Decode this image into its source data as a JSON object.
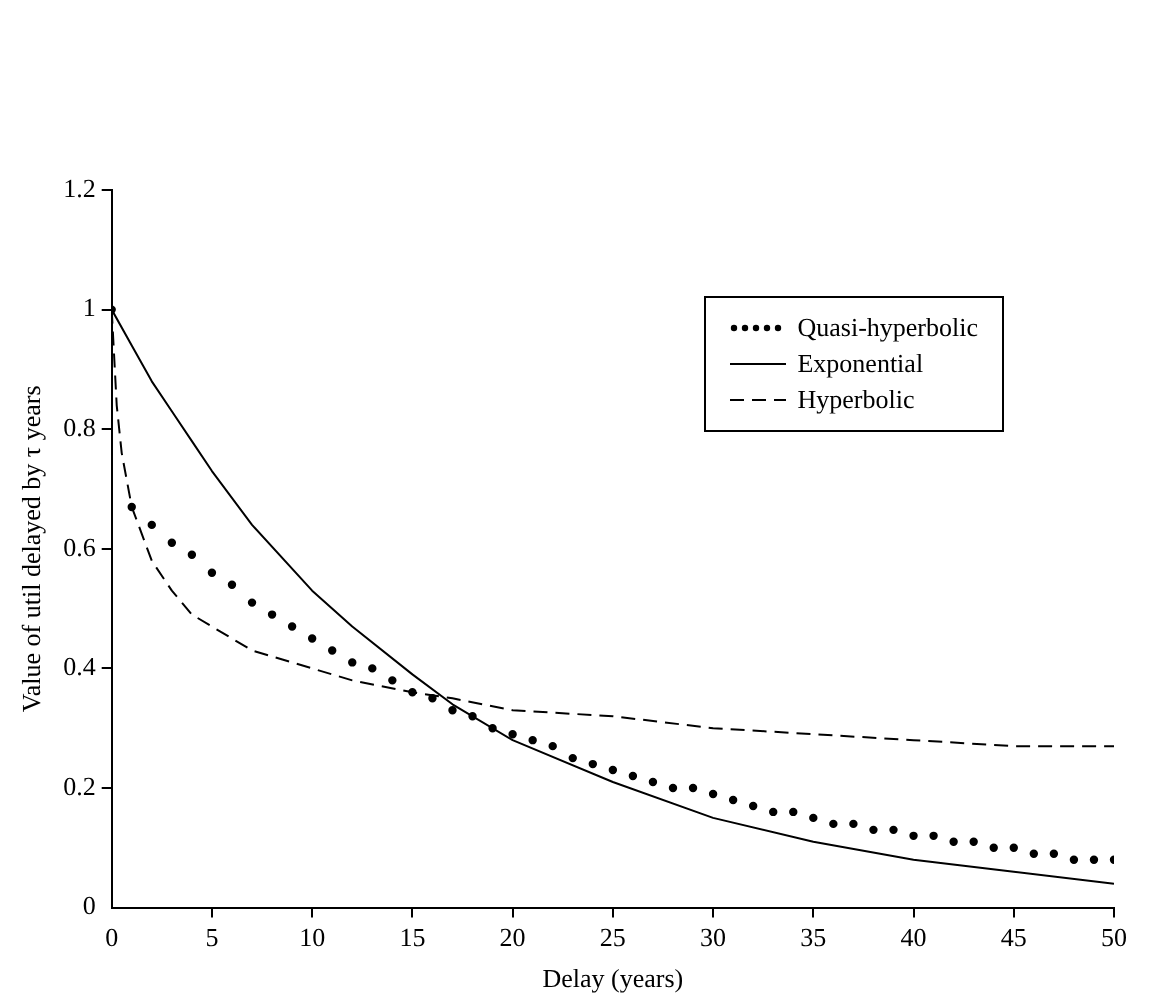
{
  "chart_data": {
    "type": "line",
    "xlabel": "Delay (years)",
    "ylabel": "Value of util delayed by τ years",
    "xlim": [
      0,
      50
    ],
    "xticks": [
      0,
      5,
      10,
      15,
      20,
      25,
      30,
      35,
      40,
      45,
      50
    ],
    "ylim": [
      0,
      1.2
    ],
    "yticks": [
      0,
      0.2,
      0.4,
      0.6,
      0.8,
      1,
      1.2
    ],
    "grid": false,
    "legend": "top right",
    "series": [
      {
        "name": "Quasi-hyperbolic",
        "type": "scatter",
        "marker": "circle",
        "color": "#000000",
        "x": [
          0,
          1,
          2,
          3,
          4,
          5,
          6,
          7,
          8,
          9,
          10,
          11,
          12,
          13,
          14,
          15,
          16,
          17,
          18,
          19,
          20,
          21,
          22,
          23,
          24,
          25,
          26,
          27,
          28,
          29,
          30,
          31,
          32,
          33,
          34,
          35,
          36,
          37,
          38,
          39,
          40,
          41,
          42,
          43,
          44,
          45,
          46,
          47,
          48,
          49,
          50
        ],
        "values": [
          1,
          0.67,
          0.64,
          0.61,
          0.59,
          0.56,
          0.54,
          0.51,
          0.49,
          0.47,
          0.45,
          0.43,
          0.41,
          0.4,
          0.38,
          0.36,
          0.35,
          0.33,
          0.32,
          0.3,
          0.29,
          0.28,
          0.27,
          0.25,
          0.24,
          0.23,
          0.22,
          0.21,
          0.2,
          0.2,
          0.19,
          0.18,
          0.17,
          0.16,
          0.16,
          0.15,
          0.14,
          0.14,
          0.13,
          0.13,
          0.12,
          0.12,
          0.11,
          0.11,
          0.1,
          0.1,
          0.09,
          0.09,
          0.08,
          0.08,
          0.08
        ]
      },
      {
        "name": "Exponential",
        "type": "line",
        "line_style": "solid",
        "color": "#000000",
        "x": [
          0,
          1,
          2,
          3,
          4,
          5,
          7,
          10,
          12,
          15,
          17,
          20,
          25,
          30,
          35,
          40,
          45,
          50
        ],
        "values": [
          1,
          0.94,
          0.88,
          0.83,
          0.78,
          0.73,
          0.64,
          0.53,
          0.47,
          0.39,
          0.34,
          0.28,
          0.21,
          0.15,
          0.11,
          0.08,
          0.06,
          0.04
        ]
      },
      {
        "name": "Hyperbolic",
        "type": "line",
        "line_style": "dashed",
        "color": "#000000",
        "x": [
          0,
          0.25,
          0.5,
          1,
          2,
          3,
          4,
          5,
          7,
          10,
          12,
          15,
          17,
          20,
          25,
          30,
          35,
          40,
          45,
          50
        ],
        "values": [
          1,
          0.84,
          0.76,
          0.67,
          0.58,
          0.53,
          0.49,
          0.47,
          0.43,
          0.4,
          0.38,
          0.36,
          0.35,
          0.33,
          0.32,
          0.3,
          0.29,
          0.28,
          0.27,
          0.27
        ]
      }
    ]
  }
}
